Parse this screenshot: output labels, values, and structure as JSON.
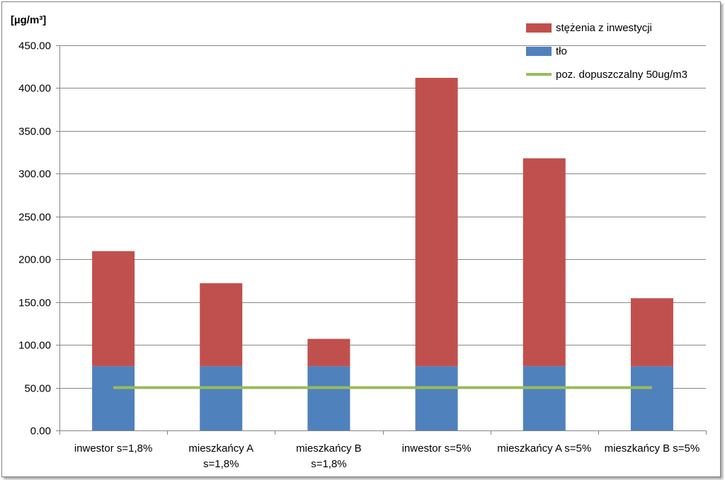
{
  "chart_data": {
    "type": "bar",
    "stacked": true,
    "y_unit_label": "[µg/m³]",
    "ylim": [
      0,
      450
    ],
    "y_ticks": [
      0,
      50,
      100,
      150,
      200,
      250,
      300,
      350,
      400,
      450
    ],
    "y_tick_labels": [
      "0.00",
      "50.00",
      "100.00",
      "150.00",
      "200.00",
      "250.00",
      "300.00",
      "350.00",
      "400.00",
      "450.00"
    ],
    "grid": true,
    "legend_position": "top-right",
    "categories": [
      [
        "inwestor s=1,8%"
      ],
      [
        "mieszkańcy A",
        "s=1,8%"
      ],
      [
        "mieszkańcy B",
        "s=1,8%"
      ],
      [
        "inwestor s=5%"
      ],
      [
        "mieszkańcy A s=5%"
      ],
      [
        "mieszkańcy B s=5%"
      ]
    ],
    "series": [
      {
        "name": "tło",
        "color": "#4F81BD",
        "values": [
          75,
          75,
          75,
          75,
          75,
          75
        ]
      },
      {
        "name": "stężenia z inwestycji",
        "color": "#C0504D",
        "values": [
          134.5,
          97,
          32,
          337,
          243,
          79.5
        ]
      }
    ],
    "line_series": {
      "name": "poz. dopuszczalny 50ug/m3",
      "color": "#9BBB59",
      "value": 50
    },
    "legend_order": [
      "stężenia z inwestycji",
      "tło",
      "poz. dopuszczalny 50ug/m3"
    ]
  }
}
